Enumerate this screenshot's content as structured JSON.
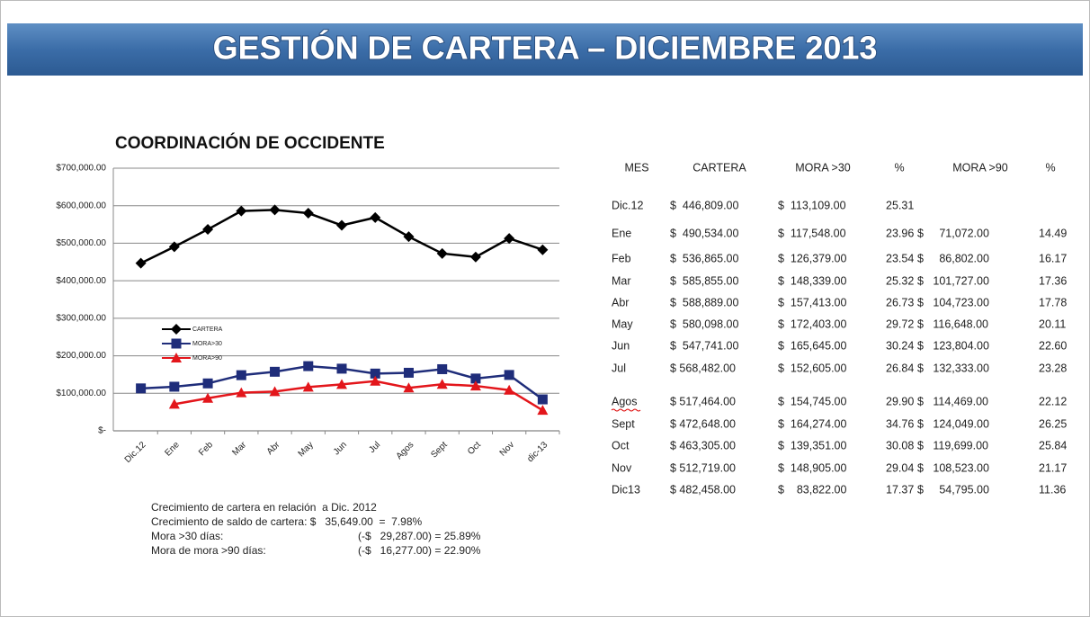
{
  "header": {
    "title": "GESTIÓN DE CARTERA – DICIEMBRE 2013"
  },
  "chart_data": {
    "type": "line",
    "title": "COORDINACIÓN DE OCCIDENTE",
    "categories": [
      "Dic.12",
      "Ene",
      "Feb",
      "Mar",
      "Abr",
      "May",
      "Jun",
      "Jul",
      "Agos",
      "Sept",
      "Oct",
      "Nov",
      "dic-13"
    ],
    "series": [
      {
        "name": "CARTERA",
        "color": "#000000",
        "marker": "diamond",
        "values": [
          446809,
          490534,
          536865,
          585855,
          588889,
          580098,
          547741,
          568482,
          517464,
          472648,
          463305,
          512719,
          482458
        ]
      },
      {
        "name": "MORA>30",
        "color": "#1f2d7a",
        "marker": "square",
        "values": [
          113109,
          117548,
          126379,
          148339,
          157413,
          172403,
          165645,
          152605,
          154745,
          164274,
          139351,
          148905,
          83822
        ]
      },
      {
        "name": "MORA>90",
        "color": "#e3161b",
        "marker": "triangle",
        "values": [
          null,
          71072,
          86802,
          101727,
          104723,
          116648,
          123804,
          132333,
          114469,
          124049,
          119699,
          108523,
          54795
        ]
      }
    ],
    "ylim": [
      0,
      700000
    ],
    "yticks": [
      {
        "value": 0,
        "label": "$-"
      },
      {
        "value": 100000,
        "label": "$100,000.00"
      },
      {
        "value": 200000,
        "label": "$200,000.00"
      },
      {
        "value": 300000,
        "label": "$300,000.00"
      },
      {
        "value": 400000,
        "label": "$400,000.00"
      },
      {
        "value": 500000,
        "label": "$500,000.00"
      },
      {
        "value": 600000,
        "label": "$600,000.00"
      },
      {
        "value": 700000,
        "label": "$700,000.00"
      }
    ],
    "grid": true
  },
  "table": {
    "header": [
      "MES",
      "CARTERA",
      "MORA >30",
      "%",
      "MORA >90",
      "%"
    ],
    "rows": [
      [
        "Dic.12",
        "$  446,809.00",
        "$  113,109.00",
        "25.31"
      ],
      [
        "Ene",
        "$  490,534.00",
        "$  117,548.00",
        "23.96",
        "$     71,072.00",
        "14.49"
      ],
      [
        "Feb",
        "$  536,865.00",
        "$  126,379.00",
        "23.54",
        "$     86,802.00",
        "16.17"
      ],
      [
        "Mar",
        "$  585,855.00",
        "$  148,339.00",
        "25.32",
        "$   101,727.00",
        "17.36"
      ],
      [
        "Abr",
        "$  588,889.00",
        "$  157,413.00",
        "26.73",
        "$   104,723.00",
        "17.78"
      ],
      [
        "May",
        "$  580,098.00",
        "$  172,403.00",
        "29.72",
        "$   116,648.00",
        "20.11"
      ],
      [
        "Jun",
        "$  547,741.00",
        "$  165,645.00",
        "30.24",
        "$   123,804.00",
        "22.60"
      ],
      [
        "Jul",
        "$ 568,482.00",
        "$  152,605.00",
        "26.84",
        "$   132,333.00",
        "23.28"
      ],
      [
        "Agos",
        "$ 517,464.00",
        "$  154,745.00",
        "29.90",
        "$   114,469.00",
        "22.12"
      ],
      [
        "Sept",
        "$ 472,648.00",
        "$  164,274.00",
        "34.76",
        "$   124,049.00",
        "26.25"
      ],
      [
        "Oct",
        "$ 463,305.00",
        "$  139,351.00",
        "30.08",
        "$   119,699.00",
        "25.84"
      ],
      [
        "Nov",
        "$ 512,719.00",
        "$  148,905.00",
        "29.04",
        "$   108,523.00",
        "21.17"
      ],
      [
        "Dic13",
        "$ 482,458.00",
        "$    83,822.00",
        "17.37",
        "$     54,795.00",
        "11.36"
      ]
    ]
  },
  "notes": {
    "heading": "Crecimiento de cartera en relación  a Dic. 2012",
    "rows": [
      [
        "Crecimiento de saldo de cartera: $   35,649.00  =  7.98%"
      ],
      [
        "Mora >30 días:",
        "(-$   29,287.00) = 25.89%"
      ],
      [
        "Mora de mora >90 días:",
        "(-$   16,277.00) = 22.90%"
      ]
    ]
  }
}
